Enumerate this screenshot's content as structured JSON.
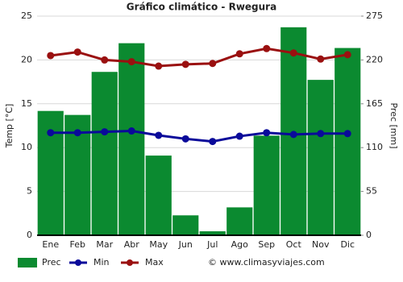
{
  "chart_data": {
    "type": "bar",
    "title": "Gráfico climático - Rwegura",
    "ylabel": "Temp [°C]",
    "y2label": "Prec [mm]",
    "categories": [
      "Ene",
      "Feb",
      "Mar",
      "Abr",
      "May",
      "Jun",
      "Jul",
      "Ago",
      "Sep",
      "Oct",
      "Nov",
      "Dic"
    ],
    "series": [
      {
        "name": "Prec",
        "type": "bar",
        "axis": "y2",
        "color": "#0b8a30",
        "values": [
          156,
          151,
          205,
          241,
          100,
          25,
          5,
          35,
          125,
          261,
          195,
          235
        ]
      },
      {
        "name": "Min",
        "type": "line",
        "color": "#0a0a9a",
        "values": [
          11.7,
          11.7,
          11.8,
          11.9,
          11.4,
          11.0,
          10.7,
          11.3,
          11.7,
          11.5,
          11.6,
          11.6
        ]
      },
      {
        "name": "Max",
        "type": "line",
        "color": "#9a1010",
        "values": [
          20.5,
          20.9,
          20.0,
          19.8,
          19.3,
          19.5,
          19.6,
          20.7,
          21.3,
          20.8,
          20.1,
          20.6
        ]
      }
    ],
    "ylim": [
      0,
      25
    ],
    "yticks": [
      0,
      5,
      10,
      15,
      20,
      25
    ],
    "y2lim": [
      0,
      275
    ],
    "y2ticks": [
      0,
      55,
      110,
      165,
      220,
      275
    ],
    "grid": true,
    "legend": "bottom",
    "watermark": "© www.climasyviajes.com"
  }
}
